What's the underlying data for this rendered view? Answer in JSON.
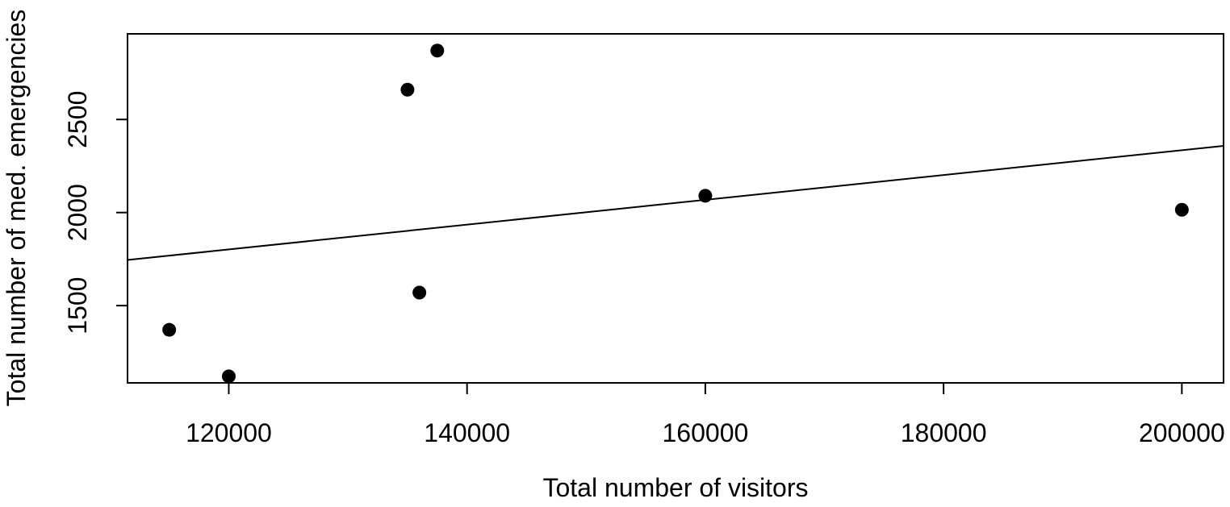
{
  "chart_data": {
    "type": "scatter",
    "title": "",
    "xlabel": "Total number of visitors",
    "ylabel": "Total number of med. emergencies",
    "xlim": [
      111500,
      203500
    ],
    "ylim": [
      1085,
      2960
    ],
    "x_ticks": [
      120000,
      140000,
      160000,
      180000,
      200000
    ],
    "x_tick_labels": [
      "120000",
      "140000",
      "160000",
      "180000",
      "200000"
    ],
    "y_ticks": [
      1500,
      2000,
      2500
    ],
    "y_tick_labels": [
      "1500",
      "2000",
      "2500"
    ],
    "grid": false,
    "legend": "none",
    "points": [
      {
        "x": 115000,
        "y": 1370
      },
      {
        "x": 120000,
        "y": 1120
      },
      {
        "x": 135000,
        "y": 2660
      },
      {
        "x": 136000,
        "y": 1570
      },
      {
        "x": 137500,
        "y": 2870
      },
      {
        "x": 160000,
        "y": 2090
      },
      {
        "x": 200000,
        "y": 2015
      }
    ],
    "regression_line": {
      "intercept": 1002,
      "slope": 0.006665
    },
    "colors": {
      "points": "#000000",
      "line": "#000000",
      "frame": "#000000"
    }
  }
}
